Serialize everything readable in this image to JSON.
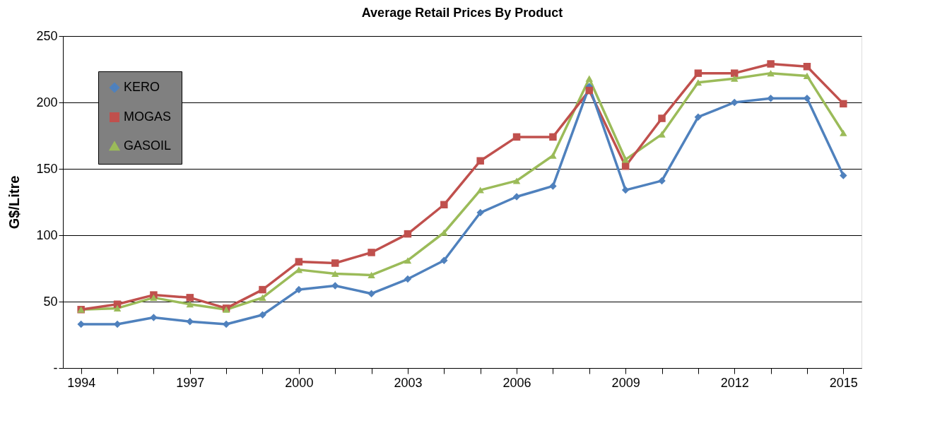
{
  "chart_data": {
    "type": "line",
    "title": "Average Retail Prices By Product",
    "ylabel": "G$/Litre",
    "categories": [
      "1994",
      null,
      null,
      "1997",
      null,
      null,
      "2000",
      null,
      null,
      "2003",
      null,
      null,
      "2006",
      null,
      null,
      "2009",
      null,
      null,
      "2012",
      null,
      null,
      "2015"
    ],
    "series": [
      {
        "name": "KERO",
        "color": "#4f81bd",
        "marker": "diamond",
        "values": [
          33,
          33,
          38,
          35,
          33,
          40,
          59,
          62,
          56,
          67,
          81,
          117,
          129,
          137,
          212,
          134,
          141,
          189,
          200,
          203,
          203,
          145
        ]
      },
      {
        "name": "MOGAS",
        "color": "#c0504d",
        "marker": "square",
        "values": [
          44,
          48,
          55,
          53,
          45,
          59,
          80,
          79,
          87,
          101,
          123,
          156,
          174,
          174,
          209,
          152,
          188,
          222,
          222,
          229,
          227,
          199
        ]
      },
      {
        "name": "GASOIL",
        "color": "#9bbb59",
        "marker": "triangle",
        "values": [
          44,
          45,
          53,
          48,
          44,
          53,
          74,
          71,
          70,
          81,
          102,
          134,
          141,
          160,
          218,
          157,
          176,
          215,
          218,
          222,
          220,
          177
        ]
      }
    ],
    "ylim": [
      0,
      250
    ],
    "yticks": [
      {
        "value": 0,
        "label": "-"
      },
      50,
      100,
      150,
      200,
      250
    ],
    "grid": "y",
    "legend": "top left"
  }
}
